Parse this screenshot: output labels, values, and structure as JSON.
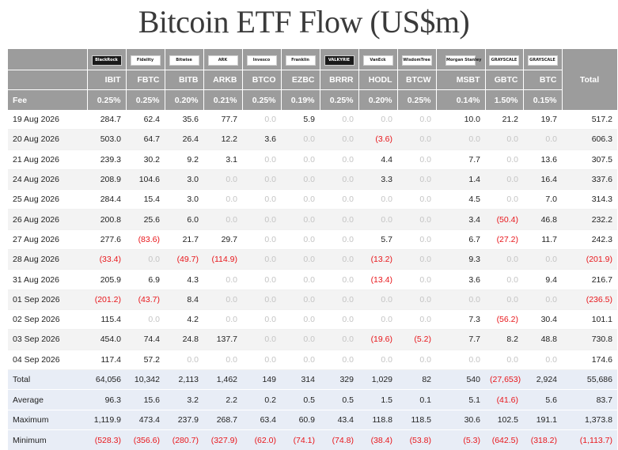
{
  "title": "Bitcoin ETF Flow (US$m)",
  "header": {
    "total_label": "Total",
    "fee_label": "Fee",
    "funds": [
      {
        "ticker": "IBIT",
        "fee": "0.25%",
        "logo": "BlackRock"
      },
      {
        "ticker": "FBTC",
        "fee": "0.25%",
        "logo": "Fidelity"
      },
      {
        "ticker": "BITB",
        "fee": "0.20%",
        "logo": "Bitwise"
      },
      {
        "ticker": "ARKB",
        "fee": "0.21%",
        "logo": "ARK"
      },
      {
        "ticker": "BTCO",
        "fee": "0.25%",
        "logo": "Invesco"
      },
      {
        "ticker": "EZBC",
        "fee": "0.19%",
        "logo": "Franklin"
      },
      {
        "ticker": "BRRR",
        "fee": "0.25%",
        "logo": "VALKYRIE"
      },
      {
        "ticker": "HODL",
        "fee": "0.20%",
        "logo": "VanEck"
      },
      {
        "ticker": "BTCW",
        "fee": "0.25%",
        "logo": "WisdomTree"
      },
      {
        "ticker": "MSBT",
        "fee": "0.14%",
        "logo": "Morgan Stanley"
      },
      {
        "ticker": "GBTC",
        "fee": "1.50%",
        "logo": "GRAYSCALE"
      },
      {
        "ticker": "BTC",
        "fee": "0.15%",
        "logo": "GRAYSCALE"
      }
    ]
  },
  "rows": [
    {
      "date": "19 Aug 2026",
      "values": [
        "284.7",
        "62.4",
        "35.6",
        "77.7",
        "0.0",
        "5.9",
        "0.0",
        "0.0",
        "0.0",
        "10.0",
        "21.2",
        "19.7"
      ],
      "total": "517.2"
    },
    {
      "date": "20 Aug 2026",
      "values": [
        "503.0",
        "64.7",
        "26.4",
        "12.2",
        "3.6",
        "0.0",
        "0.0",
        "(3.6)",
        "0.0",
        "0.0",
        "0.0",
        "0.0"
      ],
      "total": "606.3"
    },
    {
      "date": "21 Aug 2026",
      "values": [
        "239.3",
        "30.2",
        "9.2",
        "3.1",
        "0.0",
        "0.0",
        "0.0",
        "4.4",
        "0.0",
        "7.7",
        "0.0",
        "13.6"
      ],
      "total": "307.5"
    },
    {
      "date": "24 Aug 2026",
      "values": [
        "208.9",
        "104.6",
        "3.0",
        "0.0",
        "0.0",
        "0.0",
        "0.0",
        "3.3",
        "0.0",
        "1.4",
        "0.0",
        "16.4"
      ],
      "total": "337.6"
    },
    {
      "date": "25 Aug 2026",
      "values": [
        "284.4",
        "15.4",
        "3.0",
        "0.0",
        "0.0",
        "0.0",
        "0.0",
        "0.0",
        "0.0",
        "4.5",
        "0.0",
        "7.0"
      ],
      "total": "314.3"
    },
    {
      "date": "26 Aug 2026",
      "values": [
        "200.8",
        "25.6",
        "6.0",
        "0.0",
        "0.0",
        "0.0",
        "0.0",
        "0.0",
        "0.0",
        "3.4",
        "(50.4)",
        "46.8"
      ],
      "total": "232.2"
    },
    {
      "date": "27 Aug 2026",
      "values": [
        "277.6",
        "(83.6)",
        "21.7",
        "29.7",
        "0.0",
        "0.0",
        "0.0",
        "5.7",
        "0.0",
        "6.7",
        "(27.2)",
        "11.7"
      ],
      "total": "242.3"
    },
    {
      "date": "28 Aug 2026",
      "values": [
        "(33.4)",
        "0.0",
        "(49.7)",
        "(114.9)",
        "0.0",
        "0.0",
        "0.0",
        "(13.2)",
        "0.0",
        "9.3",
        "0.0",
        "0.0"
      ],
      "total": "(201.9)"
    },
    {
      "date": "31 Aug 2026",
      "values": [
        "205.9",
        "6.9",
        "4.3",
        "0.0",
        "0.0",
        "0.0",
        "0.0",
        "(13.4)",
        "0.0",
        "3.6",
        "0.0",
        "9.4"
      ],
      "total": "216.7"
    },
    {
      "date": "01 Sep 2026",
      "values": [
        "(201.2)",
        "(43.7)",
        "8.4",
        "0.0",
        "0.0",
        "0.0",
        "0.0",
        "0.0",
        "0.0",
        "0.0",
        "0.0",
        "0.0"
      ],
      "total": "(236.5)"
    },
    {
      "date": "02 Sep 2026",
      "values": [
        "115.4",
        "0.0",
        "4.2",
        "0.0",
        "0.0",
        "0.0",
        "0.0",
        "0.0",
        "0.0",
        "7.3",
        "(56.2)",
        "30.4"
      ],
      "total": "101.1"
    },
    {
      "date": "03 Sep 2026",
      "values": [
        "454.0",
        "74.4",
        "24.8",
        "137.7",
        "0.0",
        "0.0",
        "0.0",
        "(19.6)",
        "(5.2)",
        "7.7",
        "8.2",
        "48.8"
      ],
      "total": "730.8"
    },
    {
      "date": "04 Sep 2026",
      "values": [
        "117.4",
        "57.2",
        "0.0",
        "0.0",
        "0.0",
        "0.0",
        "0.0",
        "0.0",
        "0.0",
        "0.0",
        "0.0",
        "0.0"
      ],
      "total": "174.6"
    }
  ],
  "summary": [
    {
      "label": "Total",
      "values": [
        "64,056",
        "10,342",
        "2,113",
        "1,462",
        "149",
        "314",
        "329",
        "1,029",
        "82",
        "540",
        "(27,653)",
        "2,924"
      ],
      "total": "55,686"
    },
    {
      "label": "Average",
      "values": [
        "96.3",
        "15.6",
        "3.2",
        "2.2",
        "0.2",
        "0.5",
        "0.5",
        "1.5",
        "0.1",
        "5.1",
        "(41.6)",
        "5.6"
      ],
      "total": "83.7"
    },
    {
      "label": "Maximum",
      "values": [
        "1,119.9",
        "473.4",
        "237.9",
        "268.7",
        "63.4",
        "60.9",
        "43.4",
        "118.8",
        "118.5",
        "30.6",
        "102.5",
        "191.1"
      ],
      "total": "1,373.8"
    },
    {
      "label": "Minimum",
      "values": [
        "(528.3)",
        "(356.6)",
        "(280.7)",
        "(327.9)",
        "(62.0)",
        "(74.1)",
        "(74.8)",
        "(38.4)",
        "(53.8)",
        "(5.3)",
        "(642.5)",
        "(318.2)"
      ],
      "total": "(1,113.7)"
    }
  ],
  "colors": {
    "header_bg": "#9c9c9c",
    "negative": "#e8161b",
    "zero": "#c4c4c4",
    "summary_bg": "#e8edf6"
  }
}
